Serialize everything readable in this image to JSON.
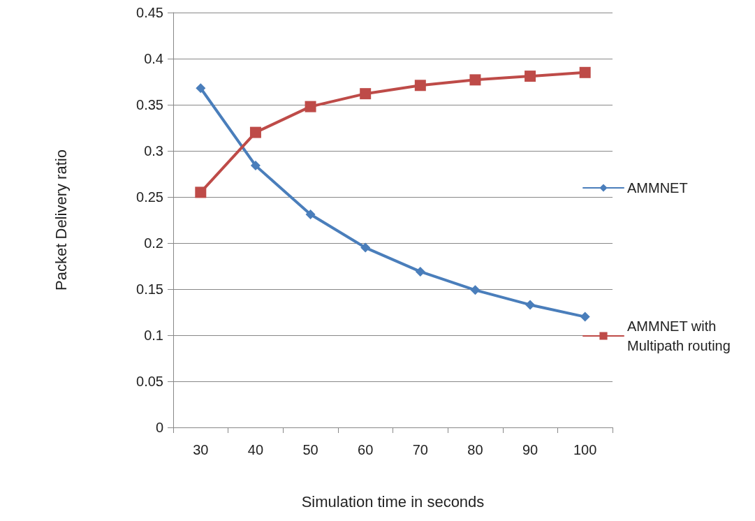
{
  "chart_data": {
    "type": "line",
    "xlabel": "Simulation time in seconds",
    "ylabel": "Packet Delivery ratio",
    "categories": [
      "30",
      "40",
      "50",
      "60",
      "70",
      "80",
      "90",
      "100"
    ],
    "series": [
      {
        "name": "AMMNET",
        "color": "#4a7ebb",
        "marker": "diamond",
        "values": [
          0.368,
          0.284,
          0.231,
          0.195,
          0.169,
          0.149,
          0.133,
          0.12
        ]
      },
      {
        "name": "AMMNET with Multipath routing",
        "color": "#be4b48",
        "marker": "square",
        "values": [
          0.255,
          0.32,
          0.348,
          0.362,
          0.371,
          0.377,
          0.381,
          0.385
        ]
      }
    ],
    "ylim": [
      0,
      0.45
    ],
    "yticks": [
      0,
      0.05,
      0.1,
      0.15,
      0.2,
      0.25,
      0.3,
      0.35,
      0.4,
      0.45
    ],
    "grid": "y",
    "legend": "right",
    "line_style": "solid"
  }
}
